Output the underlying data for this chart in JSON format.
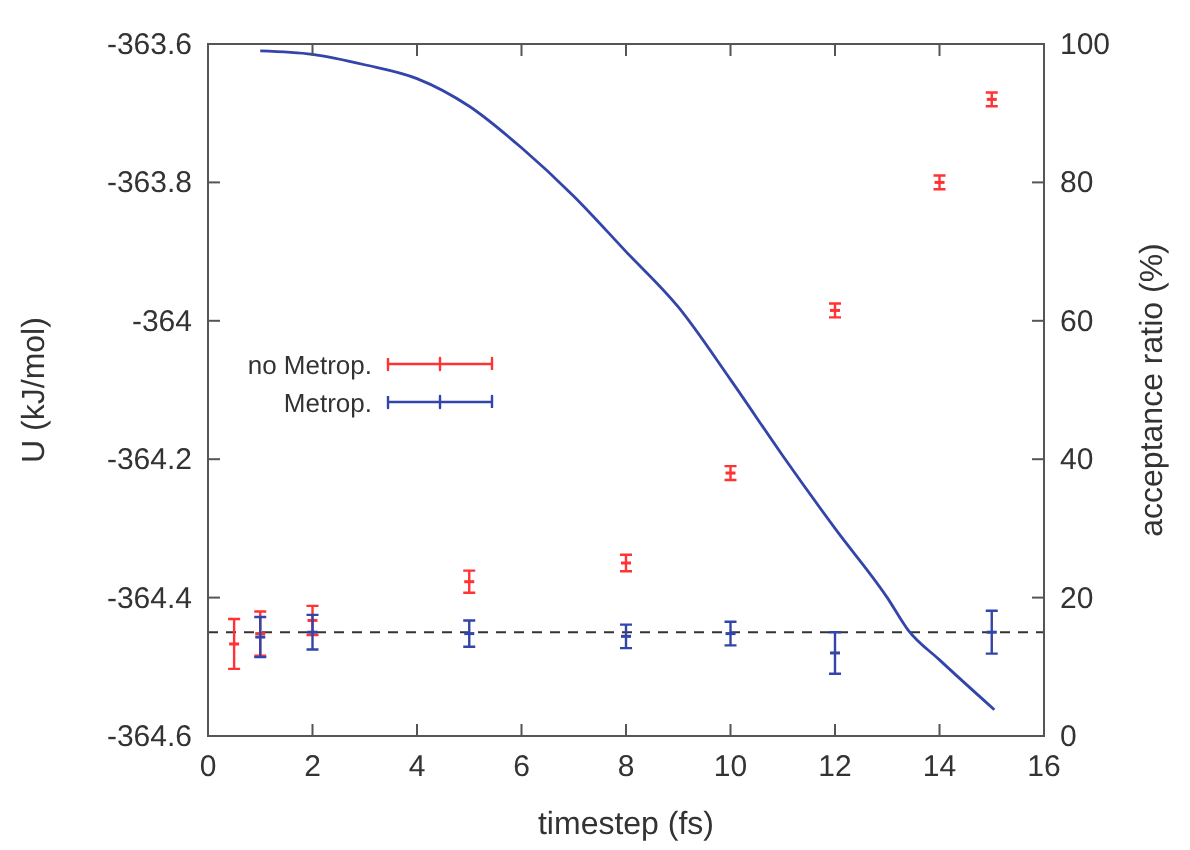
{
  "chart_data": {
    "type": "scatter",
    "xlabel": "timestep (fs)",
    "ylabel": "U (kJ/mol)",
    "y2label": "acceptance ratio (%)",
    "xlim": [
      0,
      16
    ],
    "xticks": [
      0,
      2,
      4,
      6,
      8,
      10,
      12,
      14,
      16
    ],
    "ylim": [
      -364.6,
      -363.6
    ],
    "yticks": [
      -364.6,
      -364.4,
      -364.2,
      -364,
      -363.8,
      -363.6
    ],
    "y2lim": [
      0,
      100
    ],
    "y2ticks": [
      0,
      20,
      40,
      60,
      80,
      100
    ],
    "legend": "left",
    "grid": false,
    "series": [
      {
        "name": "no Metrop.",
        "color": "#ff3333",
        "x": [
          0.5,
          1,
          2,
          5,
          8,
          10,
          12,
          14,
          15
        ],
        "values": [
          -364.467,
          -364.452,
          -364.433,
          -364.377,
          -364.35,
          -364.22,
          -363.985,
          -363.8,
          -363.68
        ],
        "errors": [
          0.036,
          0.032,
          0.021,
          0.016,
          0.012,
          0.01,
          0.01,
          0.01,
          0.01
        ]
      },
      {
        "name": "Metrop.",
        "color": "#3344aa",
        "x": [
          1,
          2,
          5,
          8,
          10,
          12,
          15
        ],
        "values": [
          -364.457,
          -364.45,
          -364.452,
          -364.456,
          -364.452,
          -364.48,
          -364.45
        ],
        "errors": [
          0.029,
          0.025,
          0.019,
          0.017,
          0.017,
          0.03,
          0.031
        ]
      },
      {
        "type": "line",
        "axis": "y2",
        "color": "#3344aa",
        "x": [
          1,
          2,
          3,
          4,
          5,
          6,
          7,
          8,
          9,
          10,
          11,
          12,
          13,
          13.4,
          14,
          15.05
        ],
        "values": [
          99,
          98.5,
          97,
          95,
          91,
          85,
          78,
          70,
          62,
          51.5,
          40.5,
          30,
          20,
          15.3,
          11,
          3.8
        ]
      }
    ],
    "ref_lines": [
      {
        "axis": "y",
        "value": -364.45,
        "color": "#333333",
        "line_style": "dashed"
      }
    ]
  }
}
